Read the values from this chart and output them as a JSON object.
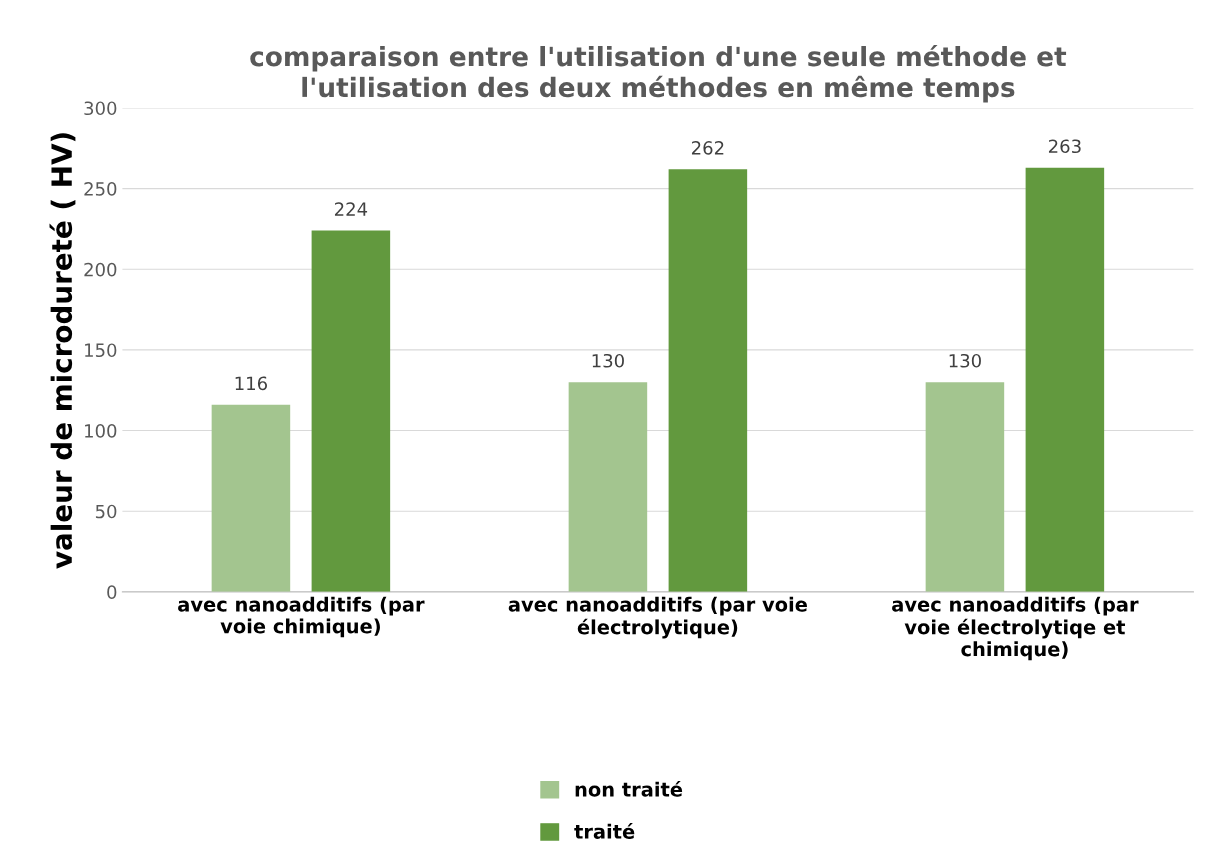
{
  "chart_data": {
    "type": "bar",
    "title": "comparaison entre l'utilisation d'une seule méthode et\nl'utilisation des deux méthodes en même temps",
    "ylabel": "valeur de microdureté ( HV)",
    "categories": [
      "avec nanoadditifs (par\nvoie chimique)",
      "avec nanoadditifs (par voie\nélectrolytique)",
      "avec nanoadditifs (par\nvoie électrolytiqe et\nchimique)"
    ],
    "series": [
      {
        "name": "non traité",
        "color": "#a3c58f",
        "values": [
          116,
          130,
          130
        ]
      },
      {
        "name": "traité",
        "color": "#62993e",
        "values": [
          224,
          262,
          263
        ]
      }
    ],
    "ylim": [
      0,
      300
    ],
    "yticks": [
      0,
      50,
      100,
      150,
      200,
      250,
      300
    ],
    "grid": "y",
    "legend": "bottom",
    "data_labels": true
  }
}
